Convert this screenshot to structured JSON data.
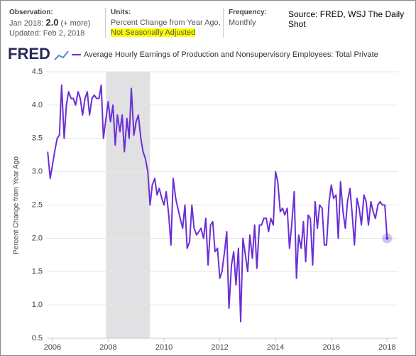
{
  "header": {
    "observation_label": "Observation:",
    "observation_date": "Jan 2018:",
    "observation_value": "2.0",
    "more": "(+ more)",
    "updated": "Updated: Feb 2, 2018",
    "units_label": "Units:",
    "units": "Percent Change from Year Ago,",
    "units_adjust": "Not Seasonally Adjusted",
    "frequency_label": "Frequency:",
    "frequency": "Monthly",
    "source": "Source: FRED, WSJ The Daily Shot",
    "logo": "FRED"
  },
  "chart_data": {
    "type": "line",
    "y_label": "Percent Change from Year Ago",
    "xlim": [
      2005.8,
      2018.4
    ],
    "xticks": [
      2006,
      2008,
      2010,
      2012,
      2014,
      2016,
      2018
    ],
    "ylim": [
      0.5,
      4.5
    ],
    "yticks": [
      0.5,
      {
        "value": 1,
        "label": "1.0"
      },
      1.5,
      {
        "value": 2,
        "label": "2.0"
      },
      2.5,
      {
        "value": 3,
        "label": "3.0"
      },
      3.5,
      {
        "value": 4,
        "label": "4.0"
      },
      4.5
    ],
    "grid": true,
    "recession": [
      2007.92,
      2009.5
    ],
    "recession_color": "#e1e1e3",
    "x": [
      2005.83,
      2005.92,
      2006.0,
      2006.08,
      2006.17,
      2006.25,
      2006.33,
      2006.42,
      2006.5,
      2006.58,
      2006.67,
      2006.75,
      2006.83,
      2006.92,
      2007.0,
      2007.08,
      2007.17,
      2007.25,
      2007.33,
      2007.42,
      2007.5,
      2007.58,
      2007.67,
      2007.75,
      2007.83,
      2007.92,
      2008.0,
      2008.08,
      2008.17,
      2008.25,
      2008.33,
      2008.42,
      2008.5,
      2008.58,
      2008.67,
      2008.75,
      2008.83,
      2008.92,
      2009.0,
      2009.08,
      2009.17,
      2009.25,
      2009.33,
      2009.42,
      2009.5,
      2009.58,
      2009.67,
      2009.75,
      2009.83,
      2009.92,
      2010.0,
      2010.08,
      2010.17,
      2010.25,
      2010.33,
      2010.42,
      2010.5,
      2010.58,
      2010.67,
      2010.75,
      2010.83,
      2010.92,
      2011.0,
      2011.08,
      2011.17,
      2011.25,
      2011.33,
      2011.42,
      2011.5,
      2011.58,
      2011.67,
      2011.75,
      2011.83,
      2011.92,
      2012.0,
      2012.08,
      2012.17,
      2012.25,
      2012.33,
      2012.42,
      2012.5,
      2012.58,
      2012.67,
      2012.75,
      2012.83,
      2012.92,
      2013.0,
      2013.08,
      2013.17,
      2013.25,
      2013.33,
      2013.42,
      2013.5,
      2013.58,
      2013.67,
      2013.75,
      2013.83,
      2013.92,
      2014.0,
      2014.08,
      2014.17,
      2014.25,
      2014.33,
      2014.42,
      2014.5,
      2014.58,
      2014.67,
      2014.75,
      2014.83,
      2014.92,
      2015.0,
      2015.08,
      2015.17,
      2015.25,
      2015.33,
      2015.42,
      2015.5,
      2015.58,
      2015.67,
      2015.75,
      2015.83,
      2015.92,
      2016.0,
      2016.08,
      2016.17,
      2016.25,
      2016.33,
      2016.42,
      2016.5,
      2016.58,
      2016.67,
      2016.75,
      2016.83,
      2016.92,
      2017.0,
      2017.08,
      2017.17,
      2017.25,
      2017.33,
      2017.42,
      2017.5,
      2017.58,
      2017.67,
      2017.75,
      2017.83,
      2017.92,
      2018.0
    ],
    "series": [
      {
        "name": "Average Hourly Earnings of Production and Nonsupervisory Employees: Total Private",
        "color": "#6a2fd6",
        "values": [
          3.3,
          2.9,
          3.1,
          3.3,
          3.5,
          3.55,
          4.3,
          3.5,
          4.0,
          4.2,
          4.1,
          4.1,
          4.0,
          4.2,
          4.1,
          3.85,
          4.1,
          4.2,
          3.85,
          4.1,
          4.15,
          4.1,
          4.1,
          4.3,
          3.5,
          3.8,
          4.05,
          3.75,
          4.0,
          3.4,
          3.85,
          3.6,
          3.85,
          3.3,
          3.8,
          3.5,
          4.25,
          3.55,
          3.75,
          3.85,
          3.5,
          3.3,
          3.2,
          3.0,
          2.5,
          2.8,
          2.9,
          2.65,
          2.75,
          2.6,
          2.5,
          2.7,
          2.35,
          1.9,
          2.9,
          2.6,
          2.45,
          2.3,
          2.15,
          2.5,
          1.85,
          1.95,
          2.5,
          2.15,
          2.05,
          2.1,
          2.15,
          2.0,
          2.3,
          1.6,
          2.2,
          2.25,
          1.8,
          1.85,
          1.4,
          1.5,
          1.8,
          2.1,
          0.95,
          1.6,
          1.8,
          1.3,
          1.85,
          0.75,
          2.0,
          1.75,
          1.5,
          2.05,
          1.7,
          2.2,
          1.55,
          2.2,
          2.2,
          2.3,
          2.3,
          2.1,
          2.3,
          2.2,
          3.0,
          2.85,
          2.4,
          2.45,
          2.35,
          2.45,
          1.85,
          2.2,
          2.7,
          1.4,
          2.05,
          1.85,
          2.25,
          1.65,
          2.35,
          2.3,
          1.6,
          2.55,
          2.15,
          2.5,
          2.45,
          1.9,
          1.9,
          2.55,
          2.8,
          2.6,
          2.65,
          2.0,
          2.85,
          2.4,
          2.15,
          2.55,
          2.75,
          2.35,
          1.9,
          2.6,
          2.45,
          2.2,
          2.65,
          2.55,
          2.2,
          2.55,
          2.4,
          2.3,
          2.5,
          2.55,
          2.5,
          2.5,
          2.0
        ]
      }
    ]
  }
}
